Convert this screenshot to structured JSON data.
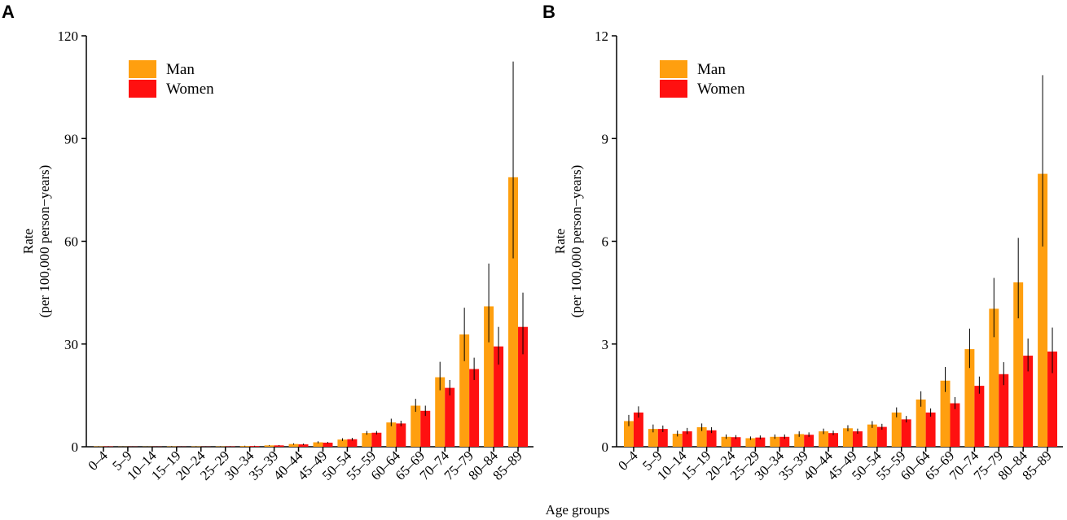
{
  "xlabel": "Age groups",
  "series_colors": {
    "Man": "#FF9F0F",
    "Women": "#FF1010"
  },
  "chart_data": [
    {
      "type": "bar",
      "panel_label": "A",
      "ylabel_line1": "Rate",
      "ylabel_line2": "(per 100,000 person−years)",
      "ylim": [
        0,
        120
      ],
      "yticks": [
        0,
        30,
        60,
        90,
        120
      ],
      "categories": [
        "0–4",
        "5–9",
        "10–14",
        "15–19",
        "20–24",
        "25–29",
        "30–34",
        "35–39",
        "40–44",
        "45–49",
        "50–54",
        "55–59",
        "60–64",
        "65–69",
        "70–74",
        "75–79",
        "80–84",
        "85–89"
      ],
      "legend": [
        "Man",
        "Women"
      ],
      "series": [
        {
          "name": "Man",
          "values": [
            0.1,
            0.05,
            0.05,
            0.1,
            0.1,
            0.1,
            0.2,
            0.4,
            0.8,
            1.3,
            2.1,
            4.0,
            7.1,
            12.0,
            20.3,
            32.8,
            41.0,
            78.7
          ],
          "err_low": [
            0.05,
            0.0,
            0.0,
            0.05,
            0.05,
            0.05,
            0.1,
            0.3,
            0.6,
            1.0,
            1.7,
            3.5,
            6.0,
            10.2,
            16.5,
            25.0,
            30.5,
            55.0
          ],
          "err_high": [
            0.15,
            0.1,
            0.1,
            0.2,
            0.15,
            0.15,
            0.3,
            0.5,
            1.0,
            1.6,
            2.5,
            4.6,
            8.2,
            14.0,
            24.8,
            40.6,
            53.5,
            112.5
          ]
        },
        {
          "name": "Women",
          "values": [
            0.1,
            0.05,
            0.05,
            0.05,
            0.05,
            0.1,
            0.2,
            0.4,
            0.7,
            1.2,
            2.2,
            4.1,
            6.8,
            10.5,
            17.2,
            22.7,
            29.3,
            35.0
          ],
          "err_low": [
            0.05,
            0.0,
            0.0,
            0.0,
            0.0,
            0.05,
            0.1,
            0.3,
            0.5,
            1.0,
            1.8,
            3.6,
            6.0,
            9.0,
            15.0,
            19.5,
            24.0,
            27.0
          ],
          "err_high": [
            0.15,
            0.1,
            0.1,
            0.1,
            0.1,
            0.15,
            0.3,
            0.5,
            0.9,
            1.4,
            2.6,
            4.6,
            7.6,
            12.0,
            19.5,
            26.0,
            35.0,
            45.0
          ]
        }
      ]
    },
    {
      "type": "bar",
      "panel_label": "B",
      "ylabel_line1": "Rate",
      "ylabel_line2": "(per 100,000 person−years)",
      "ylim": [
        0,
        12
      ],
      "yticks": [
        0,
        3,
        6,
        9,
        12
      ],
      "categories": [
        "0–4",
        "5–9",
        "10–14",
        "15–19",
        "20–24",
        "25–29",
        "30–34",
        "35–39",
        "40–44",
        "45–49",
        "50–54",
        "55–59",
        "60–64",
        "65–69",
        "70–74",
        "75–79",
        "80–84",
        "85–89"
      ],
      "legend": [
        "Man",
        "Women"
      ],
      "series": [
        {
          "name": "Man",
          "values": [
            0.75,
            0.52,
            0.38,
            0.57,
            0.29,
            0.25,
            0.29,
            0.37,
            0.45,
            0.54,
            0.65,
            1.0,
            1.38,
            1.93,
            2.85,
            4.03,
            4.8,
            7.97
          ],
          "err_low": [
            0.6,
            0.42,
            0.3,
            0.46,
            0.23,
            0.2,
            0.23,
            0.29,
            0.37,
            0.45,
            0.55,
            0.86,
            1.17,
            1.6,
            2.3,
            3.2,
            3.75,
            5.85
          ],
          "err_high": [
            0.93,
            0.65,
            0.47,
            0.68,
            0.36,
            0.3,
            0.36,
            0.45,
            0.53,
            0.63,
            0.75,
            1.15,
            1.62,
            2.33,
            3.45,
            4.93,
            6.1,
            10.85
          ]
        },
        {
          "name": "Women",
          "values": [
            1.0,
            0.52,
            0.45,
            0.48,
            0.28,
            0.27,
            0.29,
            0.35,
            0.4,
            0.45,
            0.58,
            0.8,
            1.0,
            1.27,
            1.78,
            2.12,
            2.66,
            2.78
          ],
          "err_low": [
            0.85,
            0.43,
            0.37,
            0.4,
            0.23,
            0.22,
            0.23,
            0.29,
            0.34,
            0.38,
            0.5,
            0.71,
            0.88,
            1.1,
            1.55,
            1.8,
            2.2,
            2.15
          ],
          "err_high": [
            1.18,
            0.62,
            0.55,
            0.57,
            0.34,
            0.33,
            0.36,
            0.42,
            0.47,
            0.53,
            0.67,
            0.9,
            1.12,
            1.45,
            2.05,
            2.47,
            3.16,
            3.48
          ]
        }
      ]
    }
  ]
}
